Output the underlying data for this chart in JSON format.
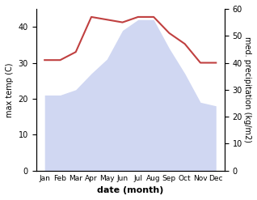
{
  "months": [
    "Jan",
    "Feb",
    "Mar",
    "Apr",
    "May",
    "Jun",
    "Jul",
    "Aug",
    "Sep",
    "Oct",
    "Nov",
    "Dec"
  ],
  "max_temp": [
    21,
    21,
    22.5,
    27,
    31,
    39,
    42,
    42,
    34,
    27,
    19,
    18
  ],
  "med_precip": [
    41,
    41,
    44,
    57,
    56,
    55,
    57,
    57,
    51,
    47,
    40,
    40
  ],
  "temp_line_color": "#c04040",
  "precip_fill_color": "#c8d0f0",
  "ylabel_left": "max temp (C)",
  "ylabel_right": "med. precipitation (kg/m2)",
  "xlabel": "date (month)",
  "ylim_left": [
    0,
    45
  ],
  "ylim_right": [
    0,
    60
  ],
  "yticks_left": [
    0,
    10,
    20,
    30,
    40
  ],
  "yticks_right": [
    0,
    10,
    20,
    30,
    40,
    50,
    60
  ],
  "background_color": "#ffffff"
}
